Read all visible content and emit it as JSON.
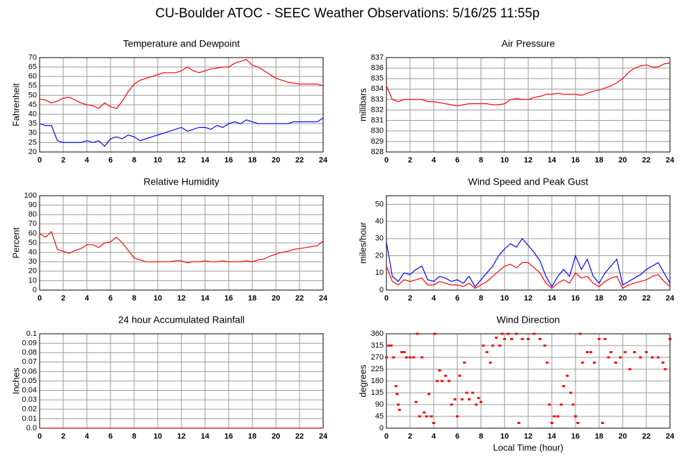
{
  "title": "CU-Boulder ATOC - SEEC Weather Observations: 5/16/25 11:55p",
  "chart_data": [
    {
      "type": "line",
      "title": "Temperature and Dewpoint",
      "ylabel": "Fahrenheit",
      "x": [
        0,
        0.5,
        1,
        1.5,
        2,
        2.5,
        3,
        3.5,
        4,
        4.5,
        5,
        5.5,
        6,
        6.5,
        7,
        7.5,
        8,
        8.5,
        9,
        9.5,
        10,
        10.5,
        11,
        11.5,
        12,
        12.5,
        13,
        13.5,
        14,
        14.5,
        15,
        15.5,
        16,
        16.5,
        17,
        17.5,
        18,
        18.5,
        19,
        19.5,
        20,
        20.5,
        21,
        21.5,
        22,
        22.5,
        23,
        23.5,
        24
      ],
      "series": [
        {
          "color": "#ff0000",
          "values": [
            48,
            47.5,
            46,
            47,
            48.5,
            49,
            47.5,
            46,
            45,
            44.5,
            43,
            46,
            44,
            43,
            47,
            52,
            56,
            58,
            59,
            60,
            61,
            62,
            62,
            62,
            63,
            65,
            63,
            62,
            63,
            64,
            64.5,
            65,
            65,
            67,
            68,
            69,
            66,
            65,
            63,
            61,
            59,
            58,
            57,
            56.5,
            56,
            56,
            56,
            56,
            55
          ]
        },
        {
          "color": "#0000ff",
          "values": [
            35,
            34,
            34,
            26,
            25,
            25,
            25,
            25,
            26,
            25,
            26,
            23,
            27,
            28,
            27,
            29,
            28,
            26,
            27,
            28,
            29,
            30,
            31,
            32,
            33,
            31,
            32,
            33,
            33,
            32,
            34,
            33,
            35,
            36,
            35,
            37,
            36,
            35,
            35,
            35,
            35,
            35,
            35,
            36,
            36,
            36,
            36,
            36,
            38
          ]
        }
      ],
      "xlim": [
        0,
        24
      ],
      "xticks": [
        0,
        2,
        4,
        6,
        8,
        10,
        12,
        14,
        16,
        18,
        20,
        22,
        24
      ],
      "ylim": [
        20,
        70
      ],
      "yticks": [
        20,
        25,
        30,
        35,
        40,
        45,
        50,
        55,
        60,
        65,
        70
      ],
      "grid": true
    },
    {
      "type": "line",
      "title": "Air Pressure",
      "ylabel": "millibars",
      "x": [
        0,
        0.5,
        1,
        1.5,
        2,
        2.5,
        3,
        3.5,
        4,
        4.5,
        5,
        5.5,
        6,
        6.5,
        7,
        7.5,
        8,
        8.5,
        9,
        9.5,
        10,
        10.5,
        11,
        11.5,
        12,
        12.5,
        13,
        13.5,
        14,
        14.5,
        15,
        15.5,
        16,
        16.5,
        17,
        17.5,
        18,
        18.5,
        19,
        19.5,
        20,
        20.5,
        21,
        21.5,
        22,
        22.5,
        23,
        23.5,
        24
      ],
      "series": [
        {
          "color": "#ff0000",
          "values": [
            834.3,
            833,
            832.8,
            833,
            833,
            833,
            833,
            832.8,
            832.8,
            832.7,
            832.6,
            832.5,
            832.4,
            832.5,
            832.6,
            832.6,
            832.6,
            832.6,
            832.5,
            832.5,
            832.6,
            833,
            833.1,
            833,
            833,
            833.2,
            833.3,
            833.5,
            833.5,
            833.6,
            833.5,
            833.5,
            833.5,
            833.4,
            833.6,
            833.8,
            833.9,
            834.1,
            834.3,
            834.6,
            835,
            835.6,
            836,
            836.2,
            836.3,
            836.1,
            836.1,
            836.4,
            836.5
          ]
        }
      ],
      "xlim": [
        0,
        24
      ],
      "xticks": [
        0,
        2,
        4,
        6,
        8,
        10,
        12,
        14,
        16,
        18,
        20,
        22,
        24
      ],
      "ylim": [
        828,
        837
      ],
      "yticks": [
        828,
        829,
        830,
        831,
        832,
        833,
        834,
        835,
        836,
        837
      ],
      "grid": true
    },
    {
      "type": "line",
      "title": "Relative Humidity",
      "ylabel": "Percent",
      "x": [
        0,
        0.5,
        1,
        1.5,
        2,
        2.5,
        3,
        3.5,
        4,
        4.5,
        5,
        5.5,
        6,
        6.5,
        7,
        7.5,
        8,
        8.5,
        9,
        9.5,
        10,
        10.5,
        11,
        11.5,
        12,
        12.5,
        13,
        13.5,
        14,
        14.5,
        15,
        15.5,
        16,
        16.5,
        17,
        17.5,
        18,
        18.5,
        19,
        19.5,
        20,
        20.5,
        21,
        21.5,
        22,
        22.5,
        23,
        23.5,
        24
      ],
      "series": [
        {
          "color": "#ff0000",
          "values": [
            60,
            56,
            62,
            43,
            41,
            39,
            42,
            44,
            48,
            48,
            45,
            50,
            51,
            56,
            50,
            42,
            34,
            32,
            30,
            30,
            30,
            30,
            30,
            31,
            31,
            29,
            30,
            30,
            31,
            30,
            30,
            31,
            30,
            30,
            30,
            31,
            30,
            32,
            33,
            36,
            38,
            40,
            41,
            43,
            44,
            45,
            46,
            47,
            52
          ]
        }
      ],
      "xlim": [
        0,
        24
      ],
      "xticks": [
        0,
        2,
        4,
        6,
        8,
        10,
        12,
        14,
        16,
        18,
        20,
        22,
        24
      ],
      "ylim": [
        0,
        100
      ],
      "yticks": [
        0,
        10,
        20,
        30,
        40,
        50,
        60,
        70,
        80,
        90,
        100
      ],
      "grid": true
    },
    {
      "type": "line",
      "title": "Wind Speed and Peak Gust",
      "ylabel": "miles/hour",
      "x": [
        0,
        0.5,
        1,
        1.5,
        2,
        2.5,
        3,
        3.5,
        4,
        4.5,
        5,
        5.5,
        6,
        6.5,
        7,
        7.5,
        8,
        8.5,
        9,
        9.5,
        10,
        10.5,
        11,
        11.5,
        12,
        12.5,
        13,
        13.5,
        14,
        14.5,
        15,
        15.5,
        16,
        16.5,
        17,
        17.5,
        18,
        18.5,
        19,
        19.5,
        20,
        20.5,
        21,
        21.5,
        22,
        22.5,
        23,
        23.5,
        24
      ],
      "series": [
        {
          "color": "#0000ff",
          "values": [
            28,
            8,
            5,
            10,
            9,
            12,
            14,
            6,
            5,
            8,
            7,
            5,
            6,
            4,
            8,
            2,
            6,
            10,
            14,
            20,
            24,
            27,
            25,
            30,
            26,
            22,
            17,
            8,
            2,
            8,
            12,
            8,
            20,
            12,
            18,
            8,
            4,
            10,
            14,
            18,
            3,
            5,
            7,
            9,
            12,
            14,
            16,
            10,
            4
          ]
        },
        {
          "color": "#ff0000",
          "values": [
            14,
            5,
            3,
            6,
            5,
            6,
            7,
            3,
            3,
            5,
            4,
            3,
            3,
            2,
            4,
            1,
            3,
            5,
            8,
            11,
            14,
            15,
            13,
            16,
            16,
            13,
            10,
            4,
            1,
            4,
            6,
            4,
            10,
            7,
            8,
            4,
            2,
            5,
            7,
            8,
            1,
            3,
            4,
            5,
            6,
            8,
            9,
            5,
            2
          ]
        }
      ],
      "xlim": [
        0,
        24
      ],
      "xticks": [
        0,
        2,
        4,
        6,
        8,
        10,
        12,
        14,
        16,
        18,
        20,
        22,
        24
      ],
      "ylim": [
        0,
        55
      ],
      "yticks": [
        0,
        10,
        20,
        30,
        40,
        50
      ],
      "grid": true
    },
    {
      "type": "line",
      "title": "24 hour Accumulated Rainfall",
      "ylabel": "Inches",
      "x": [
        0,
        24
      ],
      "series": [
        {
          "color": "#cc0000",
          "values": [
            0,
            0
          ]
        }
      ],
      "xlim": [
        0,
        24
      ],
      "xticks": [
        0,
        2,
        4,
        6,
        8,
        10,
        12,
        14,
        16,
        18,
        20,
        22,
        24
      ],
      "ylim": [
        0,
        0.1
      ],
      "yticks": [
        {
          "value": 0,
          "label": "0.0"
        },
        0.01,
        0.02,
        0.03,
        0.04,
        0.05,
        0.06,
        0.07,
        0.08,
        0.09,
        0.1
      ],
      "grid": true
    },
    {
      "type": "scatter",
      "title": "Wind Direction",
      "ylabel": "degrees",
      "xlabel": "Local Time (hour)",
      "x": [
        0,
        0.2,
        0.4,
        0.6,
        0.8,
        0.9,
        1,
        1.1,
        1.3,
        1.5,
        1.7,
        2,
        2.3,
        2.5,
        2.6,
        2.8,
        3,
        3.2,
        3.4,
        3.6,
        3.8,
        4,
        4.1,
        4.3,
        4.5,
        4.7,
        5,
        5.3,
        5.5,
        5.8,
        6,
        6.2,
        6.4,
        6.6,
        6.8,
        7,
        7.3,
        7.6,
        7.8,
        8,
        8.2,
        8.5,
        8.8,
        9,
        9.3,
        9.6,
        9.8,
        10,
        10.3,
        10.6,
        11,
        11.2,
        11.5,
        12,
        12.5,
        13,
        13.4,
        13.6,
        13.8,
        14,
        14.2,
        14.5,
        14.8,
        15,
        15.3,
        15.6,
        15.8,
        16,
        16.2,
        16.4,
        16.6,
        17,
        17.3,
        17.6,
        18,
        18.3,
        18.5,
        18.8,
        19,
        19.4,
        19.8,
        20.2,
        20.6,
        21,
        21.5,
        22,
        22.5,
        23,
        23.4,
        23.6,
        24
      ],
      "series": [
        {
          "color": "#ff0000",
          "values": [
            270,
            315,
            315,
            270,
            160,
            130,
            90,
            70,
            290,
            290,
            270,
            270,
            270,
            100,
            360,
            45,
            270,
            60,
            45,
            130,
            45,
            20,
            360,
            180,
            220,
            180,
            200,
            180,
            90,
            110,
            45,
            200,
            110,
            250,
            135,
            110,
            135,
            90,
            115,
            100,
            315,
            290,
            250,
            315,
            345,
            315,
            360,
            340,
            360,
            340,
            360,
            20,
            340,
            340,
            360,
            340,
            315,
            250,
            90,
            20,
            45,
            45,
            90,
            160,
            200,
            135,
            90,
            45,
            20,
            360,
            250,
            290,
            290,
            250,
            340,
            20,
            340,
            270,
            290,
            250,
            270,
            290,
            225,
            290,
            270,
            290,
            270,
            270,
            250,
            225,
            340
          ]
        }
      ],
      "xlim": [
        0,
        24
      ],
      "xticks": [
        0,
        2,
        4,
        6,
        8,
        10,
        12,
        14,
        16,
        18,
        20,
        22,
        24
      ],
      "ylim": [
        0,
        360
      ],
      "yticks": [
        0,
        45,
        90,
        135,
        180,
        225,
        270,
        315,
        360
      ],
      "grid": true
    }
  ]
}
